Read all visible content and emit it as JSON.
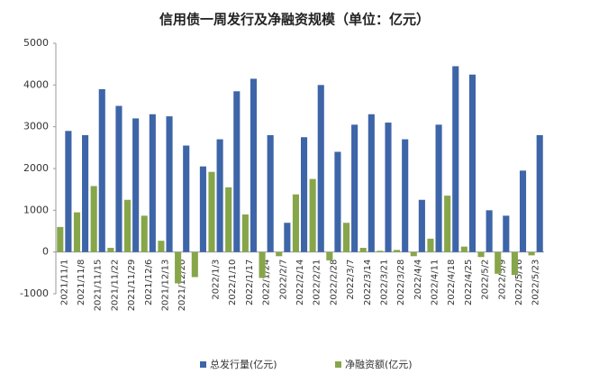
{
  "chart_data": {
    "type": "bar",
    "title": "信用债一周发行及净融资规模（单位：亿元）",
    "categories": [
      "2021/11/1",
      "2021/11/8",
      "2021/11/15",
      "2021/11/22",
      "2021/11/29",
      "2021/12/6",
      "2021/12/13",
      "2021/12/20",
      null,
      "2022/1/3",
      "2022/1/10",
      "2022/1/17",
      "2022/1/24",
      "2022/2/7",
      "2022/2/14",
      "2022/2/21",
      "2022/2/28",
      "2022/3/7",
      "2022/3/14",
      "2022/3/21",
      "2022/3/28",
      "2022/4/4",
      "2022/4/11",
      "2022/4/18",
      "2022/4/25",
      "2022/5/2",
      "2022/5/9",
      "2022/5/16",
      "2022/5/23"
    ],
    "series": [
      {
        "name": "总发行量(亿元)",
        "color": "#3d65a8",
        "values": [
          2900,
          2800,
          3900,
          3500,
          3200,
          3300,
          3250,
          2550,
          2050,
          2700,
          3850,
          4150,
          2800,
          700,
          2750,
          4000,
          2400,
          3050,
          3300,
          3100,
          2700,
          1250,
          3050,
          4450,
          4250,
          1000,
          870,
          1950,
          2800
        ]
      },
      {
        "name": "净融资额(亿元)",
        "color": "#87a64a",
        "values": [
          600,
          950,
          1580,
          100,
          1250,
          870,
          270,
          -750,
          -600,
          1920,
          1550,
          900,
          -620,
          -100,
          1380,
          1750,
          -200,
          700,
          100,
          30,
          50,
          -100,
          320,
          1350,
          130,
          -120,
          -520,
          -550,
          -80
        ]
      }
    ],
    "ylim": [
      -1000,
      5000
    ],
    "yticks": [
      -1000,
      0,
      1000,
      2000,
      3000,
      4000,
      5000
    ]
  }
}
